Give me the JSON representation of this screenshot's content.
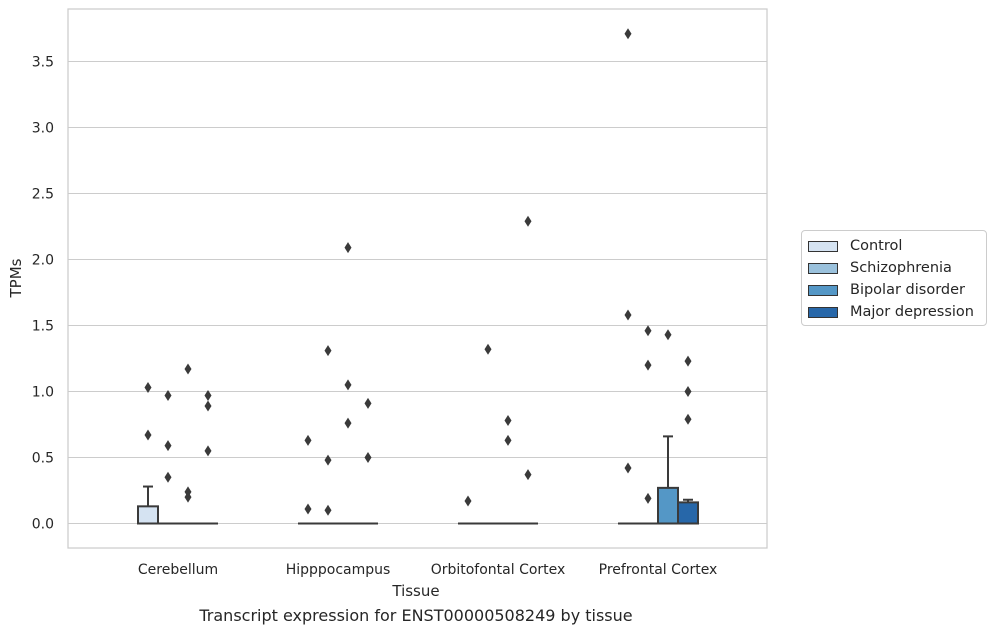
{
  "chart_data": {
    "type": "box",
    "xlabel": "Tissue",
    "ylabel": "TPMs",
    "ylim": [
      -0.18,
      3.9
    ],
    "yticks": [
      "0.0",
      "0.5",
      "1.0",
      "1.5",
      "2.0",
      "2.5",
      "3.0",
      "3.5"
    ],
    "categories": [
      "Cerebellum",
      "Hipppocampus",
      "Orbitofontal Cortex",
      "Prefrontal Cortex"
    ],
    "grid": "horizontal",
    "legend_position": "right",
    "series": [
      {
        "name": "Control",
        "color": "#d5e3f2",
        "boxes": [
          {
            "q1": 0,
            "median": 0,
            "q3": 0.13,
            "whisker_low": 0,
            "whisker_high": 0.28,
            "outliers": [
              0.67,
              1.03
            ]
          },
          {
            "q1": 0,
            "median": 0,
            "q3": 0,
            "whisker_low": 0,
            "whisker_high": 0,
            "outliers": [
              0.11,
              0.63
            ]
          },
          {
            "q1": 0,
            "median": 0,
            "q3": 0,
            "whisker_low": 0,
            "whisker_high": 0,
            "outliers": [
              0.17
            ]
          },
          {
            "q1": 0,
            "median": 0,
            "q3": 0,
            "whisker_low": 0,
            "whisker_high": 0,
            "outliers": [
              0.42,
              1.58,
              3.71
            ]
          }
        ]
      },
      {
        "name": "Schizophrenia",
        "color": "#9ac1dc",
        "boxes": [
          {
            "q1": 0,
            "median": 0,
            "q3": 0,
            "whisker_low": 0,
            "whisker_high": 0,
            "outliers": [
              0.35,
              0.59,
              0.97
            ]
          },
          {
            "q1": 0,
            "median": 0,
            "q3": 0,
            "whisker_low": 0,
            "whisker_high": 0,
            "outliers": [
              0.1,
              0.48,
              1.31
            ]
          },
          {
            "q1": 0,
            "median": 0,
            "q3": 0,
            "whisker_low": 0,
            "whisker_high": 0,
            "outliers": [
              1.32
            ]
          },
          {
            "q1": 0,
            "median": 0,
            "q3": 0,
            "whisker_low": 0,
            "whisker_high": 0,
            "outliers": [
              0.19,
              1.2,
              1.46
            ]
          }
        ]
      },
      {
        "name": "Bipolar disorder",
        "color": "#5497c6",
        "boxes": [
          {
            "q1": 0,
            "median": 0,
            "q3": 0,
            "whisker_low": 0,
            "whisker_high": 0,
            "outliers": [
              0.2,
              0.24,
              1.17
            ]
          },
          {
            "q1": 0,
            "median": 0,
            "q3": 0,
            "whisker_low": 0,
            "whisker_high": 0,
            "outliers": [
              0.76,
              1.05,
              2.09
            ]
          },
          {
            "q1": 0,
            "median": 0,
            "q3": 0,
            "whisker_low": 0,
            "whisker_high": 0,
            "outliers": [
              0.63,
              0.78
            ]
          },
          {
            "q1": 0,
            "median": 0,
            "q3": 0.27,
            "whisker_low": 0,
            "whisker_high": 0.66,
            "outliers": [
              1.43
            ]
          }
        ]
      },
      {
        "name": "Major depression",
        "color": "#2767a9",
        "boxes": [
          {
            "q1": 0,
            "median": 0,
            "q3": 0,
            "whisker_low": 0,
            "whisker_high": 0,
            "outliers": [
              0.55,
              0.89,
              0.97
            ]
          },
          {
            "q1": 0,
            "median": 0,
            "q3": 0,
            "whisker_low": 0,
            "whisker_high": 0,
            "outliers": [
              0.5,
              0.91
            ]
          },
          {
            "q1": 0,
            "median": 0,
            "q3": 0,
            "whisker_low": 0,
            "whisker_high": 0,
            "outliers": [
              0.37,
              2.29
            ]
          },
          {
            "q1": 0,
            "median": 0,
            "q3": 0.16,
            "whisker_low": 0,
            "whisker_high": 0.18,
            "outliers": [
              0.79,
              1.0,
              1.23
            ]
          }
        ]
      }
    ]
  },
  "caption": "Transcript expression for ENST00000508249 by tissue"
}
